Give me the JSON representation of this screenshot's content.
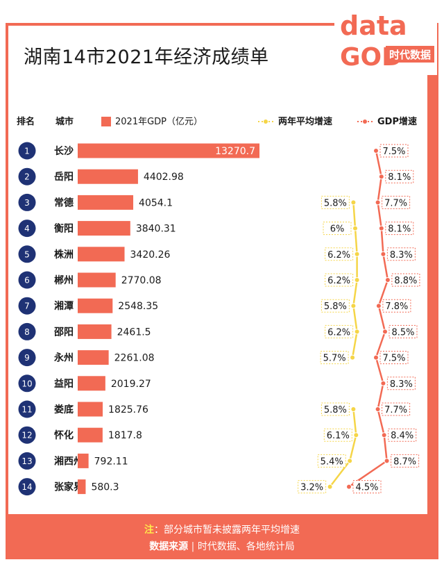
{
  "title": "湖南14市2021年经济成绩单",
  "logo": {
    "word": "data",
    "word2": "GOD",
    "brand": "时代数据"
  },
  "header": {
    "rank": "排名",
    "city": "城市",
    "gdp_legend": "2021年GDP（亿元）",
    "avg_legend": "两年平均增速",
    "gdp_growth_legend": "GDP增速"
  },
  "footer": {
    "note_label": "注",
    "note_text": "：部分城市暂未披露两年平均增速",
    "source_label": "数据来源",
    "source_text": "时代数据、各地统计局"
  },
  "colors": {
    "accent": "#f26a54",
    "rank_badge": "#1f3275",
    "avg_line": "#f5d547",
    "gdp_line": "#f26a54"
  },
  "chart_data": {
    "type": "bar",
    "ranks": [
      "1",
      "2",
      "3",
      "4",
      "5",
      "6",
      "7",
      "8",
      "9",
      "10",
      "11",
      "12",
      "13",
      "14"
    ],
    "categories": [
      "长沙",
      "岳阳",
      "常德",
      "衡阳",
      "株洲",
      "郴州",
      "湘潭",
      "邵阳",
      "永州",
      "益阳",
      "娄底",
      "怀化",
      "湘西州",
      "张家界"
    ],
    "values": [
      13270.7,
      4402.98,
      4054.1,
      3840.31,
      3420.26,
      2770.08,
      2548.35,
      2461.5,
      2261.08,
      2019.27,
      1825.76,
      1817.8,
      792.11,
      580.3
    ],
    "value_labels": [
      "13270.7",
      "4402.98",
      "4054.1",
      "3840.31",
      "3420.26",
      "2770.08",
      "2548.35",
      "2461.5",
      "2261.08",
      "2019.27",
      "1825.76",
      "1817.8",
      "792.11",
      "580.3"
    ],
    "series": [
      {
        "name": "两年平均增速",
        "values": [
          null,
          null,
          5.8,
          6,
          6.2,
          6.2,
          5.8,
          6.2,
          5.7,
          null,
          5.8,
          6.1,
          5.4,
          3.2
        ],
        "labels": [
          null,
          null,
          "5.8%",
          "6%",
          "6.2%",
          "6.2%",
          "5.8%",
          "6.2%",
          "5.7%",
          null,
          "5.8%",
          "6.1%",
          "5.4%",
          "3.2%"
        ]
      },
      {
        "name": "GDP增速",
        "values": [
          7.5,
          8.1,
          7.7,
          8.1,
          8.3,
          8.8,
          7.8,
          8.5,
          7.5,
          8.3,
          7.7,
          8.4,
          8.7,
          4.5
        ],
        "labels": [
          "7.5%",
          "8.1%",
          "7.7%",
          "8.1%",
          "8.3%",
          "8.8%",
          "7.8%",
          "8.5%",
          "7.5%",
          "8.3%",
          "7.7%",
          "8.4%",
          "8.7%",
          "4.5%"
        ]
      }
    ]
  }
}
